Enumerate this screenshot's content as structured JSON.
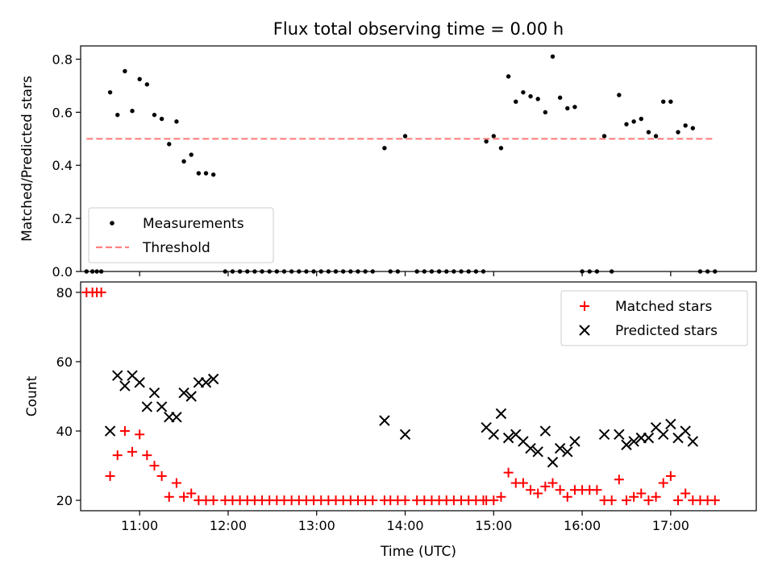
{
  "chart_data": [
    {
      "type": "scatter",
      "title": "Flux total observing time = 0.00 h",
      "xlabel": "",
      "ylabel": "Matched/Predicted stars",
      "xlim": [
        "10:20",
        "17:58"
      ],
      "ylim": [
        0,
        0.85
      ],
      "yticks": [
        "0.0",
        "0.2",
        "0.4",
        "0.6",
        "0.8"
      ],
      "xticks": [
        "11:00",
        "12:00",
        "13:00",
        "14:00",
        "15:00",
        "16:00",
        "17:00"
      ],
      "xtick_labels_shown": false,
      "legend": {
        "position": "lower-left",
        "entries": [
          "Measurements",
          "Threshold"
        ]
      },
      "series": [
        {
          "name": "Measurements",
          "marker": "dot",
          "color": "#000000",
          "points": [
            [
              "10:24",
              0
            ],
            [
              "10:28",
              0
            ],
            [
              "10:31",
              0
            ],
            [
              "10:34",
              0
            ],
            [
              "10:40",
              0.675
            ],
            [
              "10:45",
              0.59
            ],
            [
              "10:50",
              0.755
            ],
            [
              "10:55",
              0.605
            ],
            [
              "11:00",
              0.725
            ],
            [
              "11:05",
              0.705
            ],
            [
              "11:10",
              0.59
            ],
            [
              "11:15",
              0.575
            ],
            [
              "11:20",
              0.48
            ],
            [
              "11:25",
              0.565
            ],
            [
              "11:30",
              0.415
            ],
            [
              "11:35",
              0.44
            ],
            [
              "11:40",
              0.37
            ],
            [
              "11:45",
              0.37
            ],
            [
              "11:50",
              0.365
            ],
            [
              "11:58",
              0
            ],
            [
              "12:03",
              0
            ],
            [
              "12:08",
              0
            ],
            [
              "12:13",
              0
            ],
            [
              "12:18",
              0
            ],
            [
              "12:23",
              0
            ],
            [
              "12:28",
              0
            ],
            [
              "12:33",
              0
            ],
            [
              "12:38",
              0
            ],
            [
              "12:43",
              0
            ],
            [
              "12:48",
              0
            ],
            [
              "12:53",
              0
            ],
            [
              "12:58",
              0
            ],
            [
              "13:03",
              0
            ],
            [
              "13:08",
              0
            ],
            [
              "13:13",
              0
            ],
            [
              "13:18",
              0
            ],
            [
              "13:23",
              0
            ],
            [
              "13:28",
              0
            ],
            [
              "13:33",
              0
            ],
            [
              "13:38",
              0
            ],
            [
              "13:46",
              0.465
            ],
            [
              "13:50",
              0
            ],
            [
              "13:55",
              0
            ],
            [
              "14:00",
              0.51
            ],
            [
              "14:08",
              0
            ],
            [
              "14:13",
              0
            ],
            [
              "14:18",
              0
            ],
            [
              "14:23",
              0
            ],
            [
              "14:28",
              0
            ],
            [
              "14:33",
              0
            ],
            [
              "14:38",
              0
            ],
            [
              "14:43",
              0
            ],
            [
              "14:48",
              0
            ],
            [
              "14:53",
              0
            ],
            [
              "14:55",
              0.49
            ],
            [
              "15:00",
              0.51
            ],
            [
              "15:05",
              0.465
            ],
            [
              "15:10",
              0.735
            ],
            [
              "15:15",
              0.64
            ],
            [
              "15:20",
              0.675
            ],
            [
              "15:25",
              0.66
            ],
            [
              "15:30",
              0.65
            ],
            [
              "15:35",
              0.6
            ],
            [
              "15:40",
              0.81
            ],
            [
              "15:45",
              0.655
            ],
            [
              "15:50",
              0.615
            ],
            [
              "15:55",
              0.62
            ],
            [
              "16:00",
              0
            ],
            [
              "16:05",
              0
            ],
            [
              "16:10",
              0
            ],
            [
              "16:15",
              0.51
            ],
            [
              "16:20",
              0
            ],
            [
              "16:25",
              0.665
            ],
            [
              "16:30",
              0.555
            ],
            [
              "16:35",
              0.565
            ],
            [
              "16:40",
              0.575
            ],
            [
              "16:45",
              0.525
            ],
            [
              "16:50",
              0.51
            ],
            [
              "16:55",
              0.64
            ],
            [
              "17:00",
              0.64
            ],
            [
              "17:05",
              0.525
            ],
            [
              "17:10",
              0.55
            ],
            [
              "17:15",
              0.54
            ],
            [
              "17:20",
              0
            ],
            [
              "17:25",
              0
            ],
            [
              "17:30",
              0
            ]
          ]
        },
        {
          "name": "Threshold",
          "style": "dashed",
          "color": "#ff7f7f",
          "points": [
            [
              "10:24",
              0.5
            ],
            [
              "17:30",
              0.5
            ]
          ]
        }
      ]
    },
    {
      "type": "scatter",
      "title": "",
      "xlabel": "Time (UTC)",
      "ylabel": "Count",
      "xlim": [
        "10:20",
        "17:58"
      ],
      "ylim": [
        17,
        83
      ],
      "yticks": [
        "20",
        "40",
        "60",
        "80"
      ],
      "xticks": [
        "11:00",
        "12:00",
        "13:00",
        "14:00",
        "15:00",
        "16:00",
        "17:00"
      ],
      "legend": {
        "position": "upper-right",
        "entries": [
          "Matched stars",
          "Predicted stars"
        ]
      },
      "series": [
        {
          "name": "Matched stars",
          "marker": "plus",
          "color": "#ff0000",
          "points": [
            [
              "10:24",
              80
            ],
            [
              "10:28",
              80
            ],
            [
              "10:31",
              80
            ],
            [
              "10:34",
              80
            ],
            [
              "10:40",
              27
            ],
            [
              "10:45",
              33
            ],
            [
              "10:50",
              40
            ],
            [
              "10:55",
              34
            ],
            [
              "11:00",
              39
            ],
            [
              "11:05",
              33
            ],
            [
              "11:10",
              30
            ],
            [
              "11:15",
              27
            ],
            [
              "11:20",
              21
            ],
            [
              "11:25",
              25
            ],
            [
              "11:30",
              21
            ],
            [
              "11:35",
              22
            ],
            [
              "11:40",
              20
            ],
            [
              "11:45",
              20
            ],
            [
              "11:50",
              20
            ],
            [
              "11:58",
              20
            ],
            [
              "12:03",
              20
            ],
            [
              "12:08",
              20
            ],
            [
              "12:13",
              20
            ],
            [
              "12:18",
              20
            ],
            [
              "12:23",
              20
            ],
            [
              "12:28",
              20
            ],
            [
              "12:33",
              20
            ],
            [
              "12:38",
              20
            ],
            [
              "12:43",
              20
            ],
            [
              "12:48",
              20
            ],
            [
              "12:53",
              20
            ],
            [
              "12:58",
              20
            ],
            [
              "13:03",
              20
            ],
            [
              "13:08",
              20
            ],
            [
              "13:13",
              20
            ],
            [
              "13:18",
              20
            ],
            [
              "13:23",
              20
            ],
            [
              "13:28",
              20
            ],
            [
              "13:33",
              20
            ],
            [
              "13:38",
              20
            ],
            [
              "13:46",
              20
            ],
            [
              "13:50",
              20
            ],
            [
              "13:55",
              20
            ],
            [
              "14:00",
              20
            ],
            [
              "14:08",
              20
            ],
            [
              "14:13",
              20
            ],
            [
              "14:18",
              20
            ],
            [
              "14:23",
              20
            ],
            [
              "14:28",
              20
            ],
            [
              "14:33",
              20
            ],
            [
              "14:38",
              20
            ],
            [
              "14:43",
              20
            ],
            [
              "14:48",
              20
            ],
            [
              "14:53",
              20
            ],
            [
              "14:55",
              20
            ],
            [
              "15:00",
              20
            ],
            [
              "15:05",
              21
            ],
            [
              "15:10",
              28
            ],
            [
              "15:15",
              25
            ],
            [
              "15:20",
              25
            ],
            [
              "15:25",
              23
            ],
            [
              "15:30",
              22
            ],
            [
              "15:35",
              24
            ],
            [
              "15:40",
              25
            ],
            [
              "15:45",
              23
            ],
            [
              "15:50",
              21
            ],
            [
              "15:55",
              23
            ],
            [
              "16:00",
              23
            ],
            [
              "16:05",
              23
            ],
            [
              "16:10",
              23
            ],
            [
              "16:15",
              20
            ],
            [
              "16:20",
              20
            ],
            [
              "16:25",
              26
            ],
            [
              "16:30",
              20
            ],
            [
              "16:35",
              21
            ],
            [
              "16:40",
              22
            ],
            [
              "16:45",
              20
            ],
            [
              "16:50",
              21
            ],
            [
              "16:55",
              25
            ],
            [
              "17:00",
              27
            ],
            [
              "17:05",
              20
            ],
            [
              "17:10",
              22
            ],
            [
              "17:15",
              20
            ],
            [
              "17:20",
              20
            ],
            [
              "17:25",
              20
            ],
            [
              "17:30",
              20
            ]
          ]
        },
        {
          "name": "Predicted stars",
          "marker": "x",
          "color": "#000000",
          "points": [
            [
              "10:40",
              40
            ],
            [
              "10:45",
              56
            ],
            [
              "10:50",
              53
            ],
            [
              "10:55",
              56
            ],
            [
              "11:00",
              54
            ],
            [
              "11:05",
              47
            ],
            [
              "11:10",
              51
            ],
            [
              "11:15",
              47
            ],
            [
              "11:20",
              44
            ],
            [
              "11:25",
              44
            ],
            [
              "11:30",
              51
            ],
            [
              "11:35",
              50
            ],
            [
              "11:40",
              54
            ],
            [
              "11:45",
              54
            ],
            [
              "11:50",
              55
            ],
            [
              "13:46",
              43
            ],
            [
              "14:00",
              39
            ],
            [
              "14:55",
              41
            ],
            [
              "15:00",
              39
            ],
            [
              "15:05",
              45
            ],
            [
              "15:10",
              38
            ],
            [
              "15:15",
              39
            ],
            [
              "15:20",
              37
            ],
            [
              "15:25",
              35
            ],
            [
              "15:30",
              34
            ],
            [
              "15:35",
              40
            ],
            [
              "15:40",
              31
            ],
            [
              "15:45",
              35
            ],
            [
              "15:50",
              34
            ],
            [
              "15:55",
              37
            ],
            [
              "16:15",
              39
            ],
            [
              "16:25",
              39
            ],
            [
              "16:30",
              36
            ],
            [
              "16:35",
              37
            ],
            [
              "16:40",
              38
            ],
            [
              "16:45",
              38
            ],
            [
              "16:50",
              41
            ],
            [
              "16:55",
              39
            ],
            [
              "17:00",
              42
            ],
            [
              "17:05",
              38
            ],
            [
              "17:10",
              40
            ],
            [
              "17:15",
              37
            ]
          ]
        }
      ]
    }
  ]
}
